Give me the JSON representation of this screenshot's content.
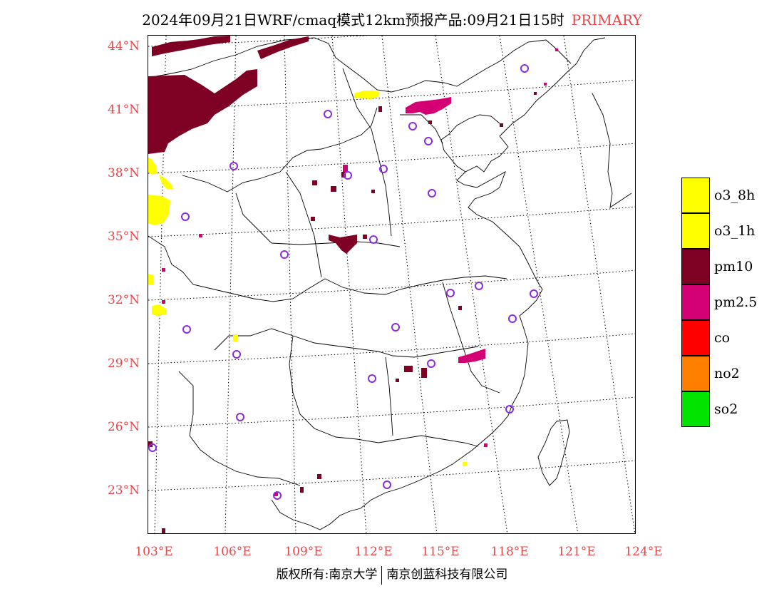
{
  "title": {
    "main": "2024年09月21日WRF/cmaq模式12km预报产品:09月21日15时",
    "tag": "PRIMARY",
    "tag_color": "#e8474a"
  },
  "lat_labels": [
    "44°N",
    "41°N",
    "38°N",
    "35°N",
    "32°N",
    "29°N",
    "26°N",
    "23°N"
  ],
  "lon_labels": [
    "103°E",
    "106°E",
    "109°E",
    "112°E",
    "115°E",
    "118°E",
    "121°E",
    "124°E"
  ],
  "legend": [
    {
      "label": "o3_8h",
      "color": "#ffff00"
    },
    {
      "label": "o3_1h",
      "color": "#ffff00"
    },
    {
      "label": "pm10",
      "color": "#7e0023"
    },
    {
      "label": "pm2.5",
      "color": "#d40073"
    },
    {
      "label": "co",
      "color": "#ff0000"
    },
    {
      "label": "no2",
      "color": "#ff7e00"
    },
    {
      "label": "so2",
      "color": "#00e400"
    }
  ],
  "copyright": {
    "left": "版权所有:南京大学",
    "right": "南京创蓝科技有限公司"
  },
  "colors": {
    "pm10": "#7e0023",
    "pm25": "#d40073",
    "o3": "#ffff00",
    "station_ring": "#8a2be2",
    "label_red": "#e8474a"
  }
}
